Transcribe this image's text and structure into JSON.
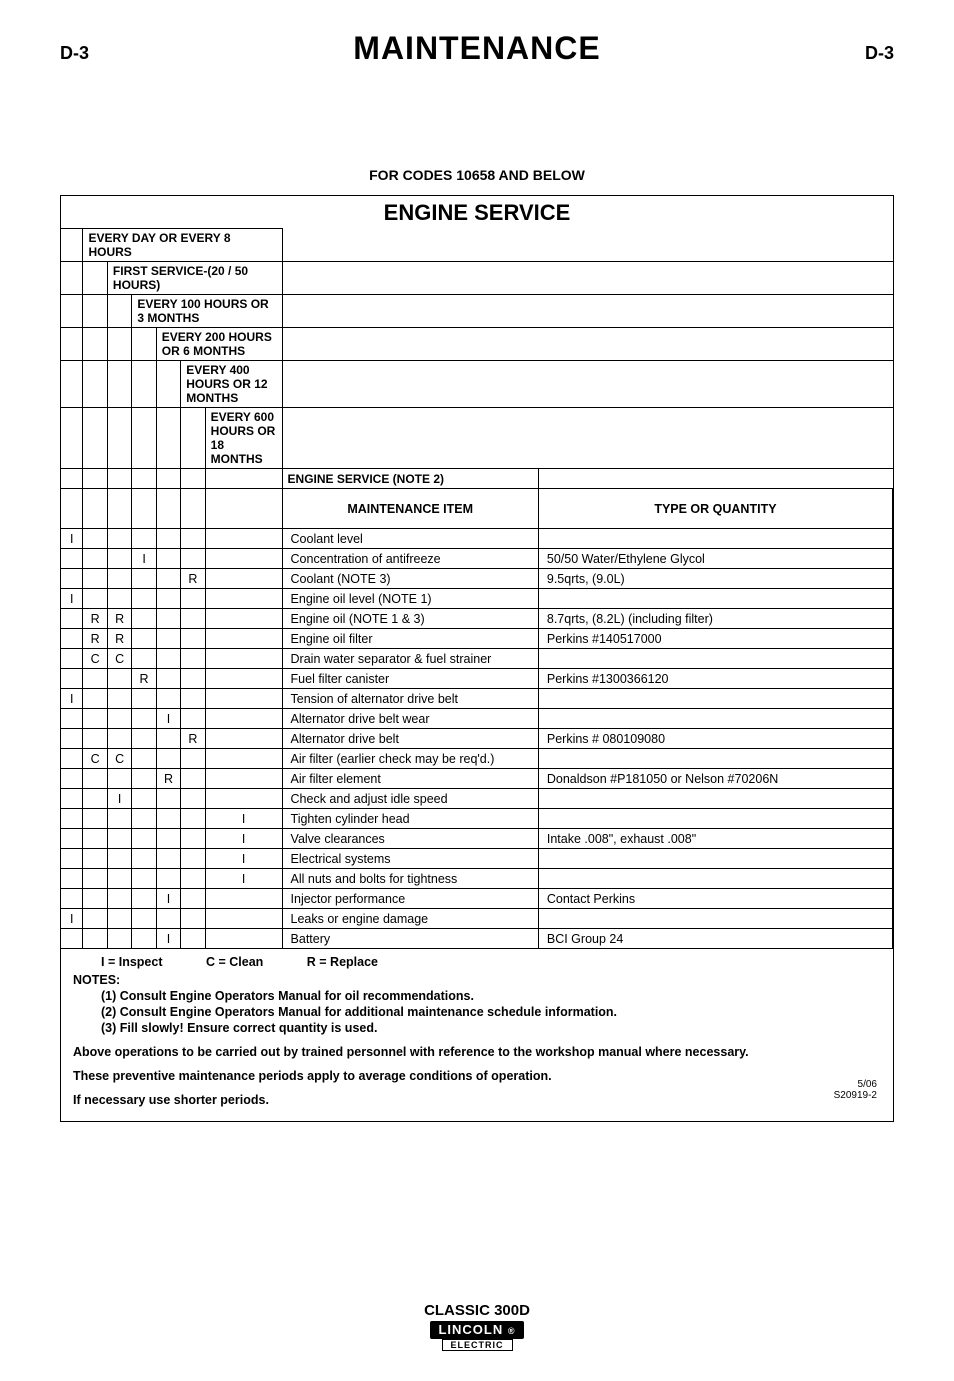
{
  "page": {
    "left_label": "D-3",
    "right_label": "D-3",
    "title": "MAINTENANCE",
    "codes_line": "FOR CODES 10658 AND BELOW",
    "section_title": "ENGINE SERVICE"
  },
  "intervals": [
    "EVERY DAY OR EVERY 8 HOURS",
    "FIRST SERVICE-(20 / 50 HOURS)",
    "EVERY 100 HOURS OR 3 MONTHS",
    "EVERY 200 HOURS OR 6 MONTHS",
    "EVERY 400 HOURS OR 12 MONTHS",
    "EVERY 600 HOURS OR 18 MONTHS",
    "ENGINE SERVICE (NOTE 2)"
  ],
  "col_headers": {
    "maint": "MAINTENANCE ITEM",
    "type": "TYPE OR QUANTITY"
  },
  "rows": [
    {
      "c": [
        "I",
        "",
        "",
        "",
        "",
        "",
        ""
      ],
      "item": "Coolant level",
      "type": ""
    },
    {
      "c": [
        "",
        "",
        "",
        "I",
        "",
        "",
        ""
      ],
      "item": "Concentration of antifreeze",
      "type": "50/50 Water/Ethylene Glycol"
    },
    {
      "c": [
        "",
        "",
        "",
        "",
        "",
        "R",
        ""
      ],
      "item": "Coolant (NOTE 3)",
      "type": "9.5qrts,  (9.0L)"
    },
    {
      "c": [
        "I",
        "",
        "",
        "",
        "",
        "",
        ""
      ],
      "item": "Engine oil level (NOTE 1)",
      "type": ""
    },
    {
      "c": [
        "",
        "R",
        "R",
        "",
        "",
        "",
        ""
      ],
      "item": "Engine oil (NOTE 1 & 3)",
      "type": "8.7qrts,  (8.2L) (including filter)"
    },
    {
      "c": [
        "",
        "R",
        "R",
        "",
        "",
        "",
        ""
      ],
      "item": "Engine oil filter",
      "type": "Perkins #140517000"
    },
    {
      "c": [
        "",
        "C",
        "C",
        "",
        "",
        "",
        ""
      ],
      "item": "Drain water separator & fuel strainer",
      "type": ""
    },
    {
      "c": [
        "",
        "",
        "",
        "R",
        "",
        "",
        ""
      ],
      "item": "Fuel filter canister",
      "type": "Perkins #1300366120"
    },
    {
      "c": [
        "I",
        "",
        "",
        "",
        "",
        "",
        ""
      ],
      "item": "Tension of alternator drive belt",
      "type": ""
    },
    {
      "c": [
        "",
        "",
        "",
        "",
        "I",
        "",
        ""
      ],
      "item": "Alternator drive belt wear",
      "type": ""
    },
    {
      "c": [
        "",
        "",
        "",
        "",
        "",
        "R",
        ""
      ],
      "item": "Alternator drive belt",
      "type": "Perkins # 080109080"
    },
    {
      "c": [
        "",
        "C",
        "C",
        "",
        "",
        "",
        ""
      ],
      "item": "Air filter (earlier check may be req'd.)",
      "type": ""
    },
    {
      "c": [
        "",
        "",
        "",
        "",
        "R",
        "",
        ""
      ],
      "item": "Air filter element",
      "type": "Donaldson #P181050 or Nelson #70206N"
    },
    {
      "c": [
        "",
        "",
        "I",
        "",
        "",
        "",
        ""
      ],
      "item": "Check and adjust idle speed",
      "type": ""
    },
    {
      "c": [
        "",
        "",
        "",
        "",
        "",
        "",
        "I"
      ],
      "item": "Tighten cylinder head",
      "type": ""
    },
    {
      "c": [
        "",
        "",
        "",
        "",
        "",
        "",
        "I"
      ],
      "item": "Valve clearances",
      "type": "Intake .008\", exhaust .008\""
    },
    {
      "c": [
        "",
        "",
        "",
        "",
        "",
        "",
        "I"
      ],
      "item": "Electrical systems",
      "type": ""
    },
    {
      "c": [
        "",
        "",
        "",
        "",
        "",
        "",
        "I"
      ],
      "item": "All nuts and bolts for tightness",
      "type": ""
    },
    {
      "c": [
        "",
        "",
        "",
        "",
        "I",
        "",
        ""
      ],
      "item": "Injector performance",
      "type": "Contact Perkins"
    },
    {
      "c": [
        "I",
        "",
        "",
        "",
        "",
        "",
        ""
      ],
      "item": "Leaks or engine damage",
      "type": ""
    },
    {
      "c": [
        "",
        "",
        "",
        "",
        "I",
        "",
        ""
      ],
      "item": "Battery",
      "type": "BCI Group 24"
    }
  ],
  "legend": {
    "i": "I = Inspect",
    "c": "C = Clean",
    "r": "R = Replace"
  },
  "notes": {
    "title": "NOTES:",
    "items": [
      "(1) Consult Engine Operators Manual for oil recommendations.",
      "(2) Consult Engine Operators Manual for additional maintenance schedule information.",
      "(3) Fill slowly! Ensure correct quantity is used."
    ],
    "warn1": "Above operations to be carried out by trained personnel with reference to the workshop manual where necessary.",
    "warn2": "These preventive maintenance periods apply to average conditions of operation.",
    "warn3": "If necessary use shorter periods."
  },
  "date_code": {
    "line1": "5/06",
    "line2": "S20919-2"
  },
  "footer": {
    "model": "CLASSIC 300D",
    "brand": "LINCOLN",
    "sub": "ELECTRIC"
  }
}
